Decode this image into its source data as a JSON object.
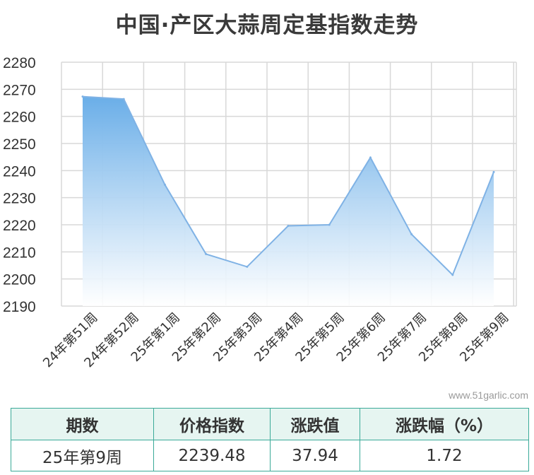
{
  "chart_data": {
    "type": "area",
    "title": "中国·产区大蒜周定基指数走势",
    "categories": [
      "24年第51周",
      "24年第52周",
      "25年第1周",
      "25年第2周",
      "25年第3周",
      "25年第4周",
      "25年第5周",
      "25年第6周",
      "25年第7周",
      "25年第8周",
      "25年第9周"
    ],
    "series": [
      {
        "values": [
          2267.3,
          2266.4,
          2234.8,
          2209.2,
          2204.5,
          2219.6,
          2220.0,
          2244.8,
          2216.5,
          2201.5,
          2239.48
        ]
      }
    ],
    "ylim": [
      2190,
      2280
    ],
    "yticks": [
      2190,
      2200,
      2210,
      2220,
      2230,
      2240,
      2250,
      2260,
      2270,
      2280
    ],
    "grid": true,
    "line_color": "#7fb2e5",
    "fill_color_top": "#6aaee8",
    "fill_color_bottom": "#ffffff"
  },
  "watermark": "www.51garlic.com",
  "summary_table": {
    "headers": [
      "期数",
      "价格指数",
      "涨跌值",
      "涨跌幅（%）"
    ],
    "row": [
      "25年第9周",
      "2239.48",
      "37.94",
      "1.72"
    ],
    "border_color": "#3aaa98",
    "header_bg": "#e6f5f1"
  }
}
